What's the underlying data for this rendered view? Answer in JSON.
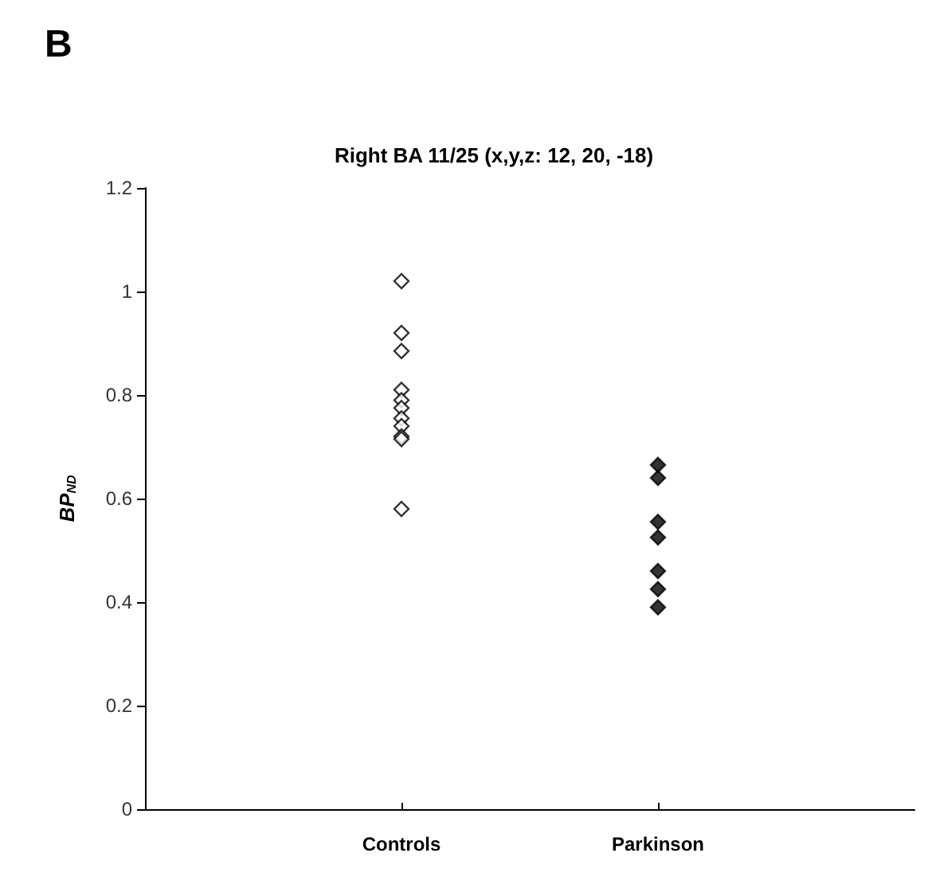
{
  "chart_data": {
    "type": "scatter",
    "title": "Right BA 11/25 (x,y,z: 12, 20, -18)",
    "ylabel": "BP$_{ND}$",
    "annotations": [
      "B"
    ],
    "categories": [
      "Controls",
      "Parkinson"
    ],
    "ylim": [
      0,
      1.2
    ],
    "yticks": [
      0,
      0.2,
      0.4,
      0.6,
      0.8,
      1,
      1.2
    ],
    "marker": "diamond",
    "series": [
      {
        "color": "#ffffff",
        "x": [
          "Controls",
          "Controls",
          "Controls",
          "Controls",
          "Controls",
          "Controls",
          "Controls",
          "Controls",
          "Controls",
          "Controls",
          "Controls"
        ],
        "values": [
          1.02,
          0.92,
          0.885,
          0.81,
          0.79,
          0.775,
          0.755,
          0.74,
          0.72,
          0.715,
          0.58
        ]
      },
      {
        "color": "#000000",
        "x": [
          "Parkinson",
          "Parkinson",
          "Parkinson",
          "Parkinson",
          "Parkinson",
          "Parkinson",
          "Parkinson"
        ],
        "values": [
          0.665,
          0.64,
          0.555,
          0.525,
          0.46,
          0.425,
          0.39
        ]
      }
    ]
  }
}
